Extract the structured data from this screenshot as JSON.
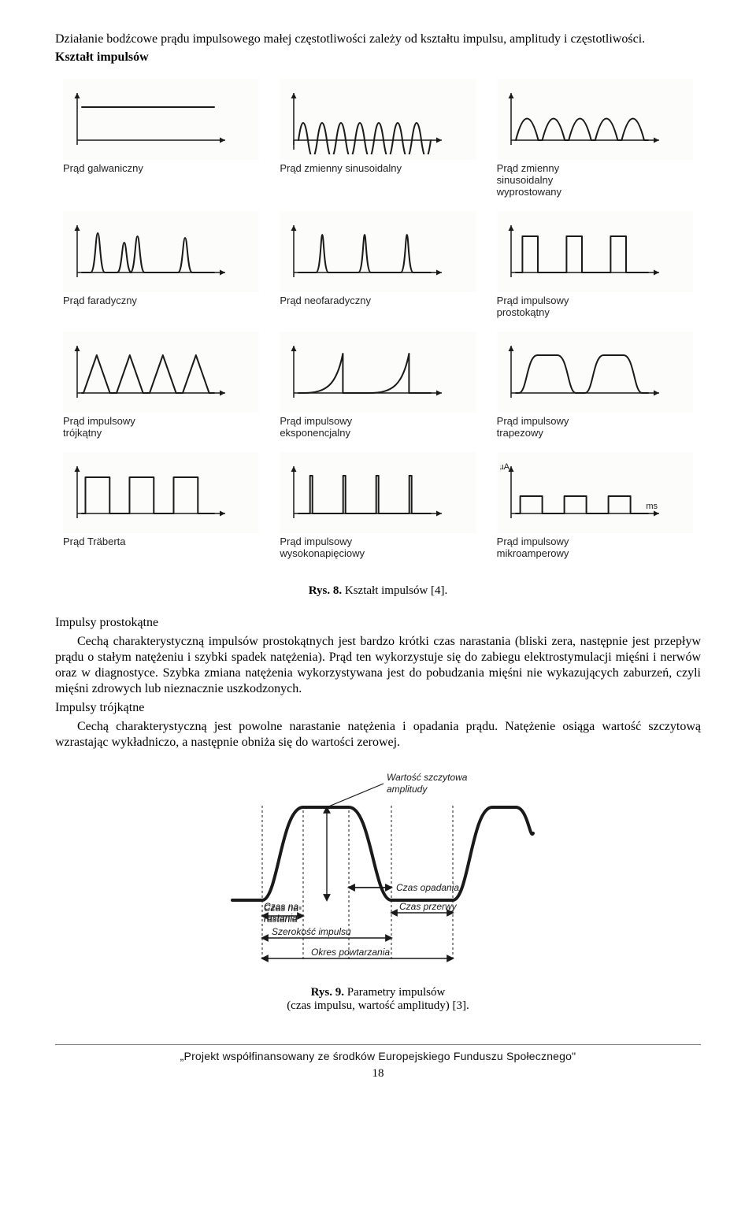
{
  "intro": "Działanie bodźcowe prądu impulsowego małej częstotliwości zależy od kształtu impulsu, amplitudy i częstotliwości.",
  "subheading": "Kształt impulsów",
  "waveforms": [
    {
      "label": "Prąd galwaniczny",
      "type": "galvanic"
    },
    {
      "label": "Prąd zmienny sinusoidalny",
      "type": "sine"
    },
    {
      "label": "Prąd zmienny\nsinusoidalny\nwyprostowany",
      "type": "rectsine"
    },
    {
      "label": "Prąd faradyczny",
      "type": "faradic"
    },
    {
      "label": "Prąd neofaradyczny",
      "type": "neofaradic"
    },
    {
      "label": "Prąd impulsowy\nprostokątny",
      "type": "rect"
    },
    {
      "label": "Prąd impulsowy\ntrójkątny",
      "type": "triangle"
    },
    {
      "label": "Prąd impulsowy\neksponencjalny",
      "type": "expo"
    },
    {
      "label": "Prąd impulsowy\ntrapezowy",
      "type": "trapezoid"
    },
    {
      "label": "Prąd Träberta",
      "type": "trabert"
    },
    {
      "label": "Prąd impulsowy\nwysokonapięciowy",
      "type": "hv"
    },
    {
      "label": "Prąd impulsowy\nmikroamperowy",
      "type": "micro",
      "unit_y": "µA",
      "unit_x": "ms"
    }
  ],
  "fig1_caption_bold": "Rys. 8.",
  "fig1_caption_rest": " Kształt impulsów [4].",
  "body": {
    "h_rect": "Impulsy prostokątne",
    "p_rect": "Cechą charakterystyczną impulsów prostokątnych jest bardzo krótki czas narastania (bliski zera, następnie jest przepływ prądu o stałym natężeniu i szybki spadek natężenia). Prąd ten wykorzystuje się do zabiegu elektrostymulacji mięśni i nerwów oraz w diagnostyce. Szybka zmiana natężenia wykorzystywana jest do pobudzania mięśni nie wykazujących zaburzeń, czyli mięśni zdrowych lub nieznacznie uszkodzonych.",
    "h_tri": "Impulsy trójkątne",
    "p_tri": "Cechą charakterystyczną jest powolne narastanie natężenia i opadania prądu. Natężenie osiąga wartość szczytową wzrastając wykładniczo, a następnie obniża się do wartości zerowej."
  },
  "fig2": {
    "peak_label": "Wartość szczytowa\namplitudy",
    "rise": "Czas na-\nrastania",
    "fall": "Czas opadania",
    "pause": "Czas przerwy",
    "width": "Szerokość impulsu",
    "period": "Okres powtarzania"
  },
  "fig2_caption_bold": "Rys. 9.",
  "fig2_caption_rest": " Parametry impulsów",
  "fig2_caption_sub": "(czas impulsu, wartość amplitudy) [3].",
  "footer": "„Projekt współfinansowany ze środków Europejskiego Funduszu Społecznego\"",
  "page": "18",
  "style": {
    "stroke": "#1a1a1a",
    "figbg": "#fbfbf8",
    "axis_w": 1.5,
    "wave_w": 2
  }
}
